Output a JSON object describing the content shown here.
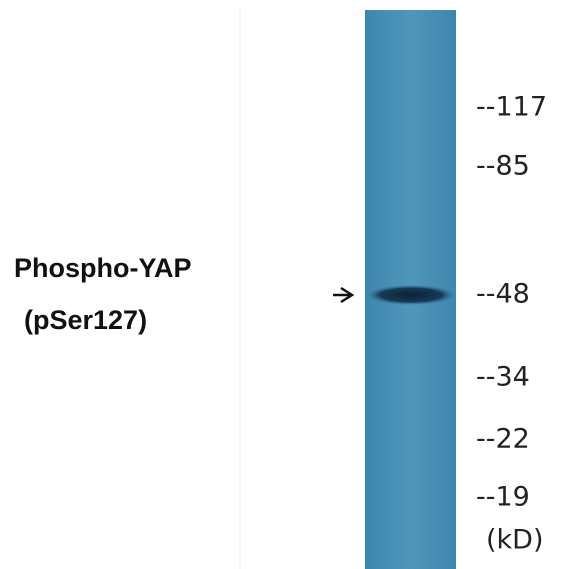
{
  "label": {
    "lines": [
      "Phospho-YAP",
      "(pSer127)"
    ]
  },
  "markers": [
    "--117",
    "--85",
    "--48",
    "--34",
    "--22",
    "--19"
  ],
  "unit": "(kD)"
}
